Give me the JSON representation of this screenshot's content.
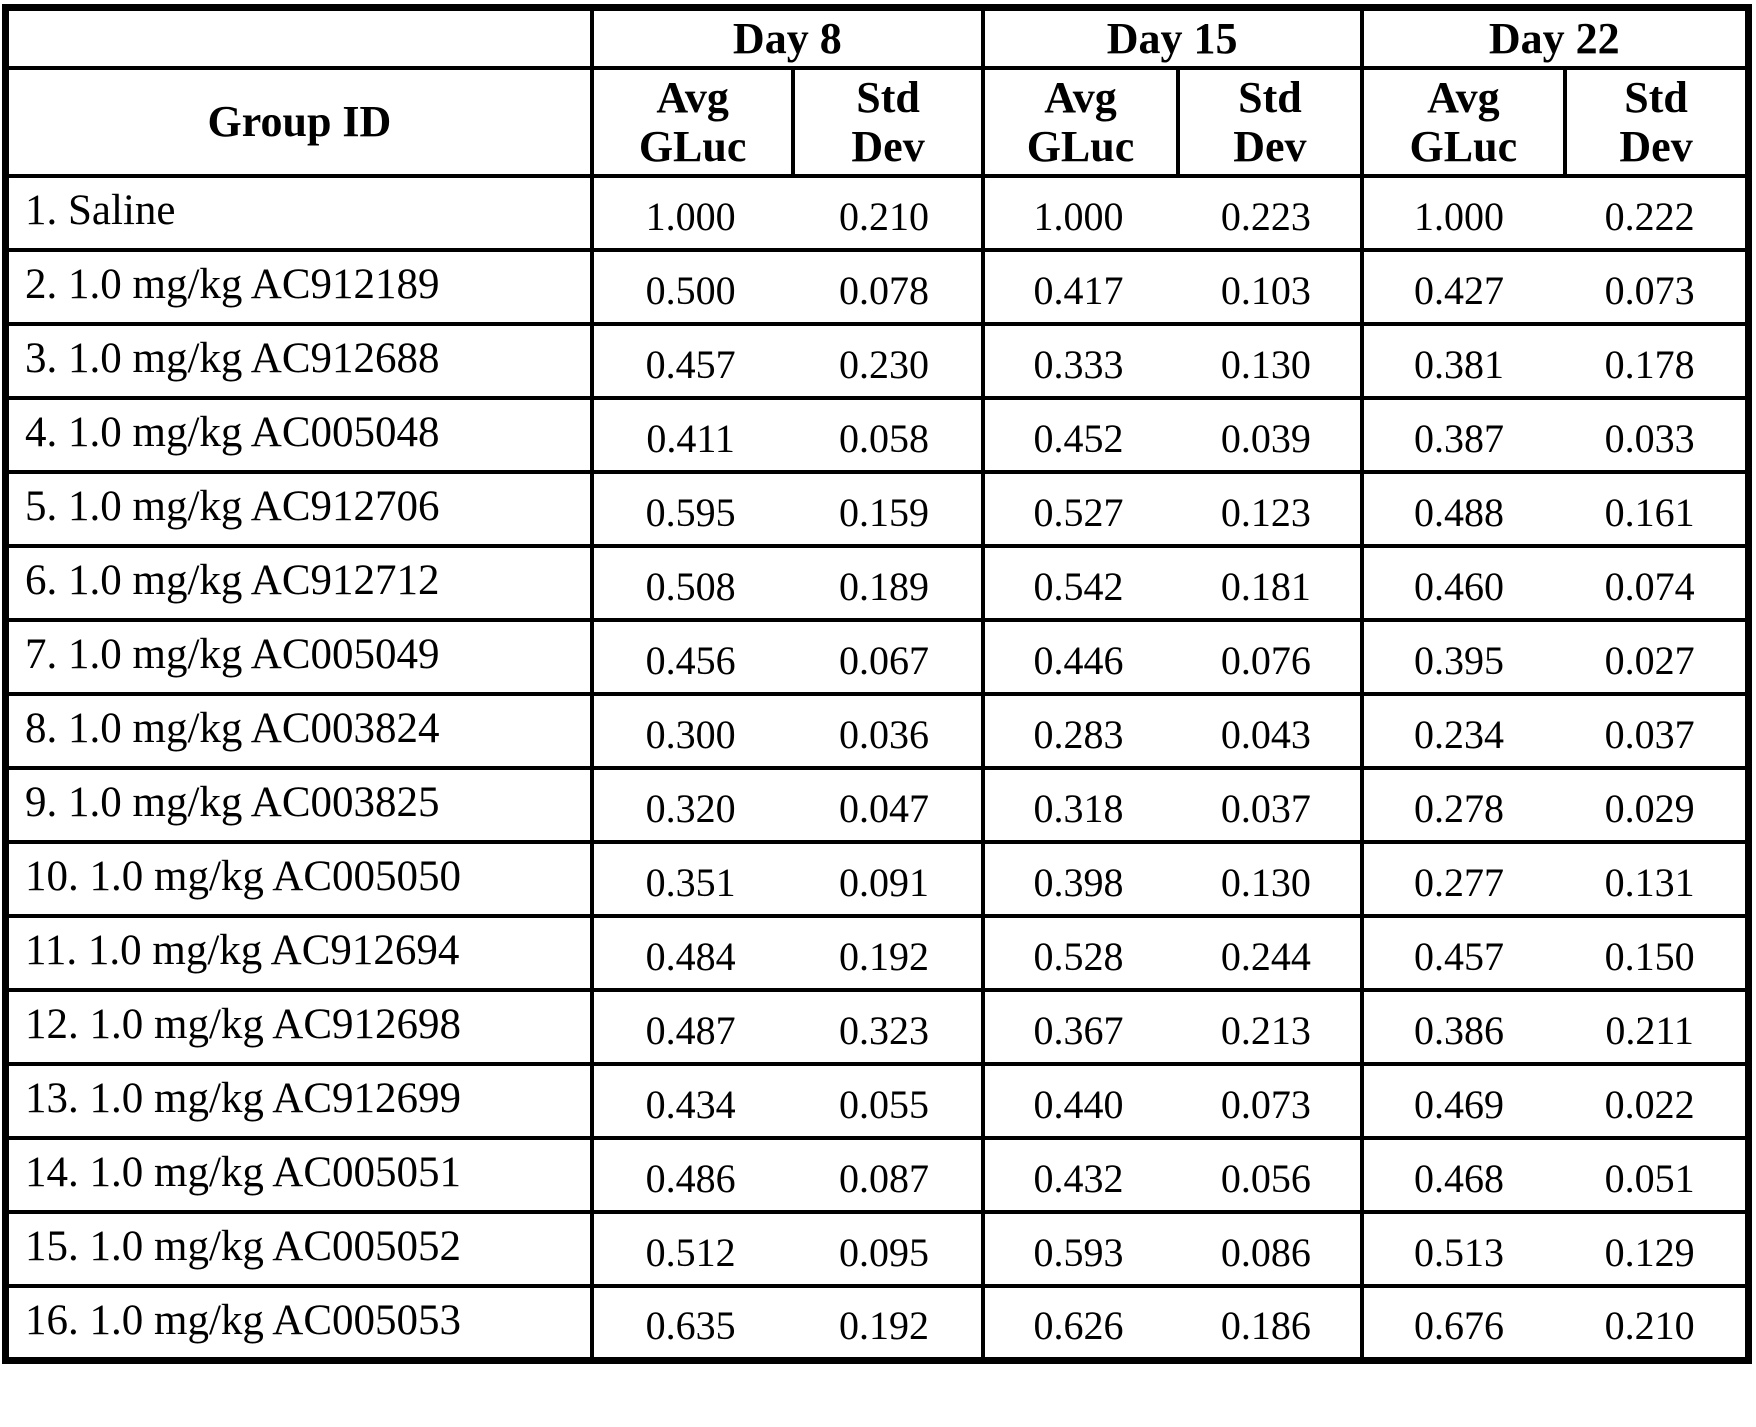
{
  "table": {
    "group_id_header": "Group ID",
    "days": [
      "Day 8",
      "Day 15",
      "Day 22"
    ],
    "avg_header": [
      "Avg",
      "GLuc"
    ],
    "std_header": [
      "Std",
      "Dev"
    ],
    "rows": [
      {
        "group": "1. Saline",
        "values": [
          "1.000",
          "0.210",
          "1.000",
          "0.223",
          "1.000",
          "0.222"
        ]
      },
      {
        "group": "2. 1.0 mg/kg AC912189",
        "values": [
          "0.500",
          "0.078",
          "0.417",
          "0.103",
          "0.427",
          "0.073"
        ]
      },
      {
        "group": "3. 1.0 mg/kg AC912688",
        "values": [
          "0.457",
          "0.230",
          "0.333",
          "0.130",
          "0.381",
          "0.178"
        ]
      },
      {
        "group": "4. 1.0 mg/kg AC005048",
        "values": [
          "0.411",
          "0.058",
          "0.452",
          "0.039",
          "0.387",
          "0.033"
        ]
      },
      {
        "group": "5. 1.0 mg/kg AC912706",
        "values": [
          "0.595",
          "0.159",
          "0.527",
          "0.123",
          "0.488",
          "0.161"
        ]
      },
      {
        "group": "6. 1.0 mg/kg AC912712",
        "values": [
          "0.508",
          "0.189",
          "0.542",
          "0.181",
          "0.460",
          "0.074"
        ]
      },
      {
        "group": "7. 1.0 mg/kg AC005049",
        "values": [
          "0.456",
          "0.067",
          "0.446",
          "0.076",
          "0.395",
          "0.027"
        ]
      },
      {
        "group": "8. 1.0 mg/kg AC003824",
        "values": [
          "0.300",
          "0.036",
          "0.283",
          "0.043",
          "0.234",
          "0.037"
        ]
      },
      {
        "group": "9. 1.0 mg/kg AC003825",
        "values": [
          "0.320",
          "0.047",
          "0.318",
          "0.037",
          "0.278",
          "0.029"
        ]
      },
      {
        "group": "10. 1.0 mg/kg AC005050",
        "values": [
          "0.351",
          "0.091",
          "0.398",
          "0.130",
          "0.277",
          "0.131"
        ]
      },
      {
        "group": "11. 1.0 mg/kg AC912694",
        "values": [
          "0.484",
          "0.192",
          "0.528",
          "0.244",
          "0.457",
          "0.150"
        ]
      },
      {
        "group": "12. 1.0 mg/kg AC912698",
        "values": [
          "0.487",
          "0.323",
          "0.367",
          "0.213",
          "0.386",
          "0.211"
        ]
      },
      {
        "group": "13. 1.0 mg/kg AC912699",
        "values": [
          "0.434",
          "0.055",
          "0.440",
          "0.073",
          "0.469",
          "0.022"
        ]
      },
      {
        "group": "14. 1.0 mg/kg AC005051",
        "values": [
          "0.486",
          "0.087",
          "0.432",
          "0.056",
          "0.468",
          "0.051"
        ]
      },
      {
        "group": "15. 1.0 mg/kg AC005052",
        "values": [
          "0.512",
          "0.095",
          "0.593",
          "0.086",
          "0.513",
          "0.129"
        ]
      },
      {
        "group": "16. 1.0 mg/kg AC005053",
        "values": [
          "0.635",
          "0.192",
          "0.626",
          "0.186",
          "0.676",
          "0.210"
        ]
      }
    ]
  }
}
